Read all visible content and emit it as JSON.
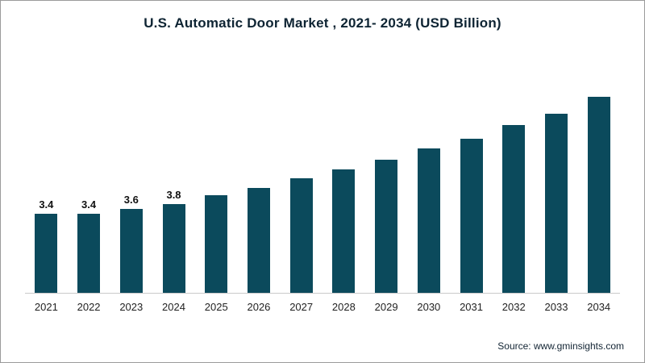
{
  "chart_data": {
    "type": "bar",
    "title": "U.S. Automatic Door Market , 2021- 2034 (USD Billion)",
    "categories": [
      "2021",
      "2022",
      "2023",
      "2024",
      "2025",
      "2026",
      "2027",
      "2028",
      "2029",
      "2030",
      "2031",
      "2032",
      "2033",
      "2034"
    ],
    "values": [
      3.4,
      3.4,
      3.6,
      3.8,
      4.2,
      4.5,
      4.9,
      5.3,
      5.7,
      6.2,
      6.6,
      7.2,
      7.7,
      8.4
    ],
    "data_labels_shown": [
      "3.4",
      "3.4",
      "3.6",
      "3.8",
      null,
      null,
      null,
      null,
      null,
      null,
      null,
      null,
      null,
      null
    ],
    "bar_color": "#0b4a5c",
    "ylim": [
      0,
      9
    ],
    "grid": false,
    "legend": "none",
    "xlabel": "",
    "ylabel": ""
  },
  "footer": {
    "source": "Source: www.gminsights.com"
  }
}
